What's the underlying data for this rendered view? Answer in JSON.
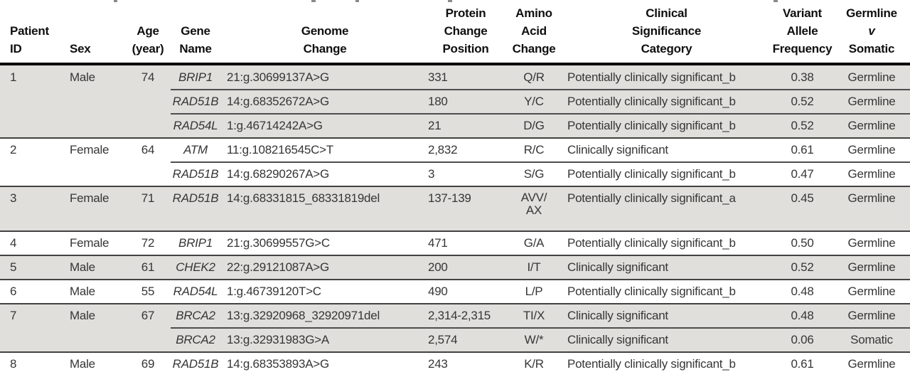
{
  "colors": {
    "shaded_row_bg": "#e1dfdc",
    "header_rule": "#000000",
    "group_separator": "#424242",
    "text": "#363636"
  },
  "table": {
    "header": {
      "patient": [
        "Patient",
        "ID"
      ],
      "sex": [
        "Sex"
      ],
      "age": [
        "Age",
        "(year)"
      ],
      "gene": [
        "Gene",
        "Name"
      ],
      "genome": [
        "Genome",
        "Change"
      ],
      "protein": [
        "Protein",
        "Change",
        "Position"
      ],
      "amino": [
        "Amino",
        "Acid",
        "Change"
      ],
      "clinical": [
        "Clinical",
        "Significance",
        "Category"
      ],
      "vaf": [
        "Variant",
        "Allele",
        "Frequency"
      ],
      "origin": [
        "Germline",
        "v",
        "Somatic"
      ]
    },
    "groups": [
      {
        "id": "1",
        "sex": "Male",
        "age": "74",
        "shaded": true,
        "variants": [
          {
            "gene": "BRIP1",
            "genome": "21:g.30699137A>G",
            "protein": "331",
            "amino": "Q/R",
            "clinical": "Potentially clinically significant_b",
            "vaf": "0.38",
            "origin": "Germline"
          },
          {
            "gene": "RAD51B",
            "genome": "14:g.68352672A>G",
            "protein": "180",
            "amino": "Y/C",
            "clinical": "Potentially clinically significant_b",
            "vaf": "0.52",
            "origin": "Germline"
          },
          {
            "gene": "RAD54L",
            "genome": "1:g.46714242A>G",
            "protein": "21",
            "amino": "D/G",
            "clinical": "Potentially clinically significant_b",
            "vaf": "0.52",
            "origin": "Germline"
          }
        ]
      },
      {
        "id": "2",
        "sex": "Female",
        "age": "64",
        "shaded": false,
        "variants": [
          {
            "gene": "ATM",
            "genome": "11:g.108216545C>T",
            "protein": "2,832",
            "amino": "R/C",
            "clinical": "Clinically significant",
            "vaf": "0.61",
            "origin": "Germline"
          },
          {
            "gene": "RAD51B",
            "genome": "14:g.68290267A>G",
            "protein": "3",
            "amino": "S/G",
            "clinical": "Potentially clinically significant_b",
            "vaf": "0.47",
            "origin": "Germline"
          }
        ]
      },
      {
        "id": "3",
        "sex": "Female",
        "age": "71",
        "shaded": true,
        "variants": [
          {
            "gene": "RAD51B",
            "genome": "14:g.68331815_68331819del",
            "protein": "137-139",
            "amino": "AVV/\nAX",
            "clinical": "Potentially clinically significant_a",
            "vaf": "0.45",
            "origin": "Germline",
            "tall": true
          }
        ]
      },
      {
        "id": "4",
        "sex": "Female",
        "age": "72",
        "shaded": false,
        "variants": [
          {
            "gene": "BRIP1",
            "genome": "21:g.30699557G>C",
            "protein": "471",
            "amino": "G/A",
            "clinical": "Potentially clinically significant_b",
            "vaf": "0.50",
            "origin": "Germline"
          }
        ]
      },
      {
        "id": "5",
        "sex": "Male",
        "age": "61",
        "shaded": true,
        "variants": [
          {
            "gene": "CHEK2",
            "genome": "22:g.29121087A>G",
            "protein": "200",
            "amino": "I/T",
            "clinical": "Clinically significant",
            "vaf": "0.52",
            "origin": "Germline"
          }
        ]
      },
      {
        "id": "6",
        "sex": "Male",
        "age": "55",
        "shaded": false,
        "variants": [
          {
            "gene": "RAD54L",
            "genome": "1:g.46739120T>C",
            "protein": "490",
            "amino": "L/P",
            "clinical": "Potentially clinically significant_b",
            "vaf": "0.48",
            "origin": "Germline"
          }
        ]
      },
      {
        "id": "7",
        "sex": "Male",
        "age": "67",
        "shaded": true,
        "variants": [
          {
            "gene": "BRCA2",
            "genome": "13:g.32920968_32920971del",
            "protein": "2,314-2,315",
            "amino": "TI/X",
            "clinical": "Clinically significant",
            "vaf": "0.48",
            "origin": "Germline"
          },
          {
            "gene": "BRCA2",
            "genome": "13:g.32931983G>A",
            "protein": "2,574",
            "amino": "W/*",
            "clinical": "Clinically significant",
            "vaf": "0.06",
            "origin": "Somatic"
          }
        ]
      },
      {
        "id": "8",
        "sex": "Male",
        "age": "69",
        "shaded": false,
        "variants": [
          {
            "gene": "RAD51B",
            "genome": "14:g.68353893A>G",
            "protein": "243",
            "amino": "K/R",
            "clinical": "Potentially clinically significant_b",
            "vaf": "0.61",
            "origin": "Germline"
          }
        ]
      }
    ]
  }
}
